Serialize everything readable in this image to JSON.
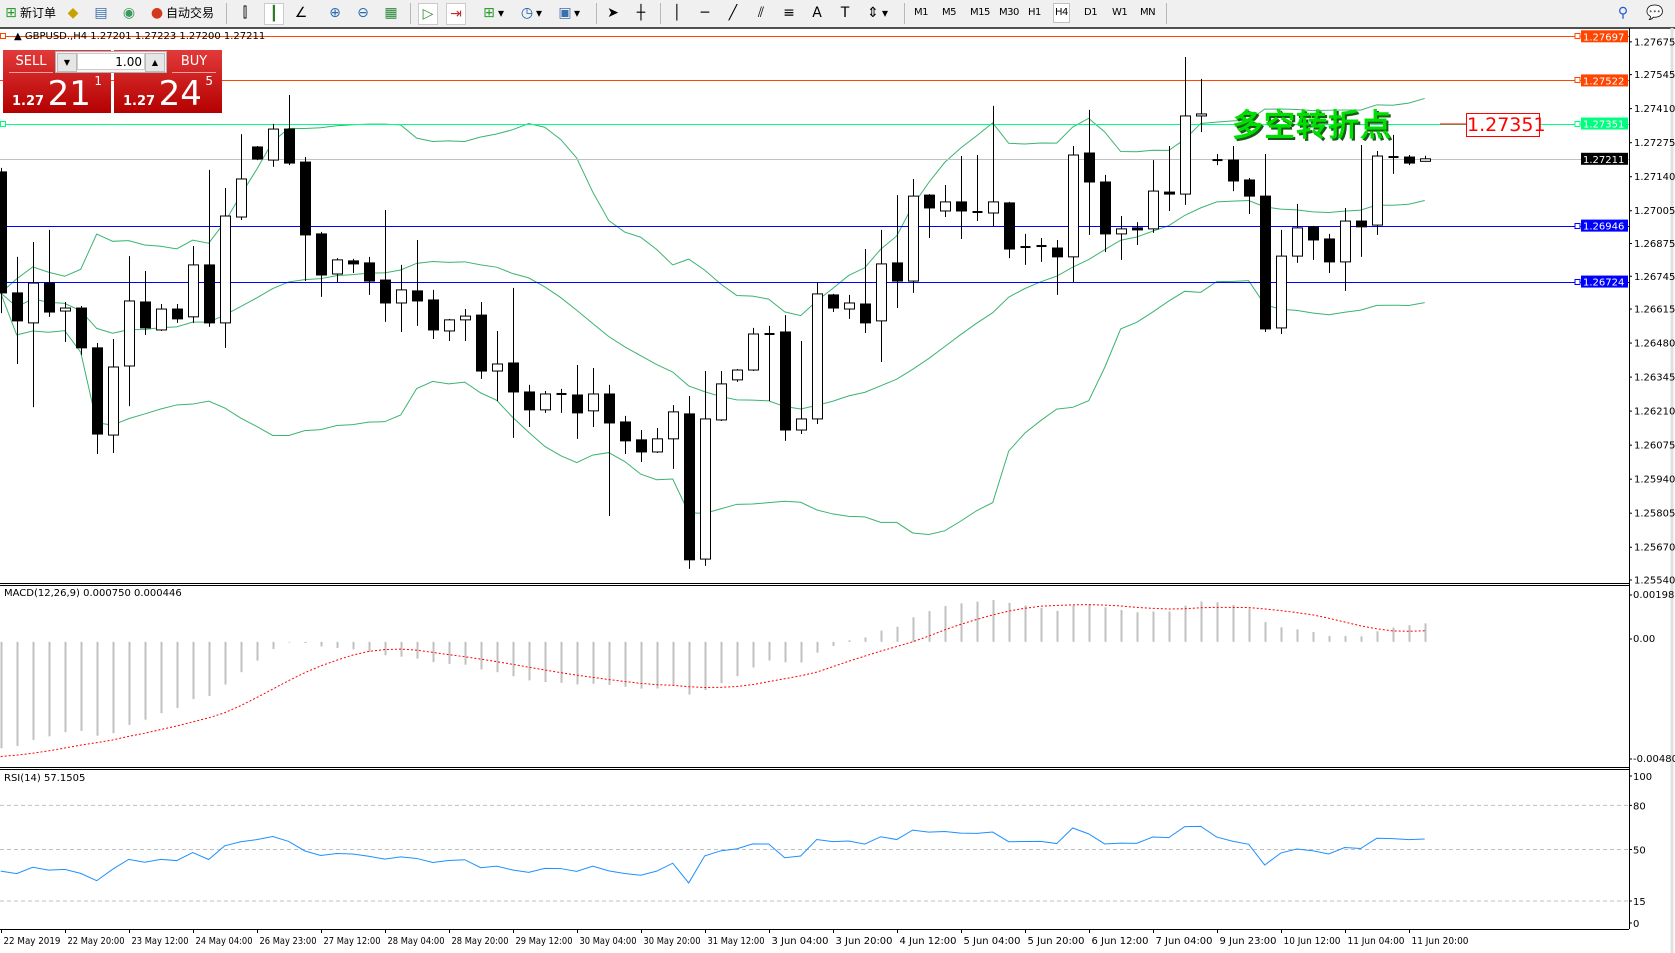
{
  "toolbar": {
    "new_order_label": "新订单",
    "auto_trading_label": "自动交易",
    "icons": [
      "new-order-icon",
      "market-watch-icon",
      "data-window-icon",
      "navigator-icon",
      "auto-trading-icon",
      "bar-chart-icon",
      "candlestick-icon",
      "line-chart-icon",
      "zoom-in-icon",
      "zoom-out-icon",
      "tile-windows-icon",
      "chart-shift-icon",
      "autoscroll-icon",
      "indicators-icon",
      "periods-icon",
      "templates-icon",
      "cursor-icon",
      "crosshair-icon",
      "vertical-line-icon",
      "horizontal-line-icon",
      "trendline-icon",
      "equidistant-channel-icon",
      "fibonacci-icon",
      "text-icon",
      "text-label-icon",
      "arrows-icon",
      "search-icon",
      "chat-icon"
    ],
    "timeframes": [
      "M1",
      "M5",
      "M15",
      "M30",
      "H1",
      "H4",
      "D1",
      "W1",
      "MN"
    ],
    "active_timeframe": "H4"
  },
  "chart": {
    "symbol_header": "GBPUSD.,H4  1.27201 1.27223 1.27200 1.27211",
    "annotation_text": "多空转折点",
    "annotation_price": "1.27351",
    "colors": {
      "up_body": "#ffffff",
      "down_body": "#000000",
      "bands": "#3cb371",
      "bid_line": "#c0c0c0",
      "resistance": "#ff4500",
      "pivot": "#00ff7f",
      "support": "#0000ff",
      "annotation": "#00e000"
    }
  },
  "one_click": {
    "sell_label": "SELL",
    "buy_label": "BUY",
    "lot": "1.00",
    "sell_price": {
      "prefix": "1.27",
      "big": "21",
      "small": "1"
    },
    "buy_price": {
      "prefix": "1.27",
      "big": "24",
      "small": "5"
    }
  },
  "price_axis": {
    "ticks": [
      "1.27675",
      "1.27545",
      "1.27410",
      "1.27275",
      "1.27140",
      "1.27005",
      "1.26875",
      "1.26745",
      "1.26615",
      "1.26480",
      "1.26345",
      "1.26210",
      "1.26075",
      "1.25940",
      "1.25805",
      "1.25670",
      "1.25540"
    ],
    "levels": [
      {
        "price": "1.27697",
        "color": "#ff4500",
        "text_color": "#ffffff"
      },
      {
        "price": "1.27522",
        "color": "#ff4500",
        "text_color": "#ffffff"
      },
      {
        "price": "1.27351",
        "color": "#00ff7f",
        "text_color": "#ffffff"
      },
      {
        "price": "1.27211",
        "color": "#000000",
        "text_color": "#ffffff",
        "line": "#c0c0c0"
      },
      {
        "price": "1.26946",
        "color": "#0000ff",
        "text_color": "#ffffff"
      },
      {
        "price": "1.26724",
        "color": "#0000ff",
        "text_color": "#ffffff"
      }
    ]
  },
  "macd": {
    "label": "MACD(12,26,9) 0.000750 0.000446",
    "axis": [
      "0.001985",
      "0.00",
      "-0.004803"
    ]
  },
  "rsi": {
    "label": "RSI(14) 57.1505",
    "axis": [
      "100",
      "80",
      "50",
      "15",
      "0"
    ],
    "levels": [
      80,
      50,
      15
    ]
  },
  "time_axis": [
    "22 May 2019",
    "22 May 20:00",
    "23 May 12:00",
    "24 May 04:00",
    "26 May 23:00",
    "27 May 12:00",
    "28 May 04:00",
    "28 May 20:00",
    "29 May 12:00",
    "30 May 04:00",
    "30 May 20:00",
    "31 May 12:00",
    "3 Jun 04:00",
    "3 Jun 20:00",
    "4 Jun 12:00",
    "5 Jun 04:00",
    "5 Jun 20:00",
    "6 Jun 12:00",
    "7 Jun 04:00",
    "9 Jun 23:00",
    "10 Jun 12:00",
    "11 Jun 04:00",
    "11 Jun 20:00"
  ],
  "chart_data": {
    "type": "candlestick",
    "symbol": "GBPUSD.",
    "timeframe": "H4",
    "ylim": [
      1.2554,
      1.27697
    ],
    "ohlc_fields": [
      "open",
      "high",
      "low",
      "close"
    ],
    "candles": [
      [
        1.27159,
        1.27175,
        1.26599,
        1.26679
      ],
      [
        1.26679,
        1.26822,
        1.26397,
        1.26568
      ],
      [
        1.2656,
        1.26881,
        1.26226,
        1.26718
      ],
      [
        1.26718,
        1.26929,
        1.26584,
        1.26603
      ],
      [
        1.26607,
        1.26643,
        1.26484,
        1.26619
      ],
      [
        1.26619,
        1.26627,
        1.26433,
        1.26461
      ],
      [
        1.26461,
        1.2648,
        1.2604,
        1.26119
      ],
      [
        1.26115,
        1.26496,
        1.26044,
        1.26385
      ],
      [
        1.26389,
        1.26825,
        1.2623,
        1.26647
      ],
      [
        1.26643,
        1.26766,
        1.26512,
        1.2654
      ],
      [
        1.26532,
        1.26635,
        1.26528,
        1.26615
      ],
      [
        1.26615,
        1.26635,
        1.2656,
        1.26576
      ],
      [
        1.26584,
        1.26865,
        1.2656,
        1.2679
      ],
      [
        1.2679,
        1.27167,
        1.26544,
        1.2656
      ],
      [
        1.2656,
        1.27095,
        1.26461,
        1.26984
      ],
      [
        1.2698,
        1.27309,
        1.26968,
        1.27131
      ],
      [
        1.27258,
        1.27262,
        1.27206,
        1.2721
      ],
      [
        1.27206,
        1.27349,
        1.27179,
        1.27329
      ],
      [
        1.27329,
        1.27464,
        1.27186,
        1.27194
      ],
      [
        1.27198,
        1.27218,
        1.26726,
        1.26909
      ],
      [
        1.26913,
        1.26921,
        1.26663,
        1.2675
      ],
      [
        1.26754,
        1.26817,
        1.26722,
        1.2681
      ],
      [
        1.26806,
        1.26814,
        1.26758,
        1.26794
      ],
      [
        1.26798,
        1.26822,
        1.26671,
        1.26726
      ],
      [
        1.2673,
        1.27008,
        1.26564,
        1.26639
      ],
      [
        1.26639,
        1.2679,
        1.26524,
        1.26691
      ],
      [
        1.26687,
        1.26889,
        1.26548,
        1.26647
      ],
      [
        1.26651,
        1.26691,
        1.26496,
        1.26532
      ],
      [
        1.26528,
        1.26576,
        1.26488,
        1.26572
      ],
      [
        1.26572,
        1.26615,
        1.26488,
        1.26587
      ],
      [
        1.26591,
        1.26643,
        1.26338,
        1.26369
      ],
      [
        1.26369,
        1.26528,
        1.2625,
        1.26397
      ],
      [
        1.26401,
        1.26699,
        1.26104,
        1.26286
      ],
      [
        1.26286,
        1.26314,
        1.26147,
        1.26215
      ],
      [
        1.26215,
        1.2629,
        1.26203,
        1.26278
      ],
      [
        1.26278,
        1.26298,
        1.26203,
        1.26274
      ],
      [
        1.26274,
        1.26393,
        1.261,
        1.26203
      ],
      [
        1.26211,
        1.26381,
        1.26147,
        1.26278
      ],
      [
        1.26278,
        1.26314,
        1.25794,
        1.26163
      ],
      [
        1.26167,
        1.26191,
        1.2604,
        1.26092
      ],
      [
        1.26096,
        1.26135,
        1.26008,
        1.26048
      ],
      [
        1.26048,
        1.26143,
        1.26044,
        1.261
      ],
      [
        1.261,
        1.26234,
        1.25981,
        1.26207
      ],
      [
        1.26199,
        1.2627,
        1.25584,
        1.2562
      ],
      [
        1.25623,
        1.26369,
        1.25596,
        1.26179
      ],
      [
        1.26175,
        1.26369,
        1.26171,
        1.26318
      ],
      [
        1.26334,
        1.26377,
        1.26326,
        1.26373
      ],
      [
        1.26373,
        1.2654,
        1.26369,
        1.26516
      ],
      [
        1.26516,
        1.26548,
        1.2625,
        1.26512
      ],
      [
        1.26524,
        1.26591,
        1.26092,
        1.26135
      ],
      [
        1.26135,
        1.26488,
        1.26119,
        1.26179
      ],
      [
        1.26179,
        1.26722,
        1.26159,
        1.26675
      ],
      [
        1.26671,
        1.26675,
        1.26603,
        1.26619
      ],
      [
        1.26615,
        1.26671,
        1.26576,
        1.26639
      ],
      [
        1.26635,
        1.26853,
        1.2652,
        1.2656
      ],
      [
        1.26568,
        1.26929,
        1.26405,
        1.26794
      ],
      [
        1.26798,
        1.27067,
        1.26619,
        1.26726
      ],
      [
        1.26726,
        1.27131,
        1.26679,
        1.27063
      ],
      [
        1.27067,
        1.27071,
        1.26897,
        1.27016
      ],
      [
        1.27004,
        1.27107,
        1.2698,
        1.2704
      ],
      [
        1.2704,
        1.27222,
        1.26893,
        1.27004
      ],
      [
        1.26996,
        1.27226,
        1.26964,
        1.27
      ],
      [
        1.26996,
        1.27421,
        1.26944,
        1.2704
      ],
      [
        1.27036,
        1.2704,
        1.26817,
        1.26853
      ],
      [
        1.26861,
        1.26913,
        1.2679,
        1.26857
      ],
      [
        1.26865,
        1.26897,
        1.26802,
        1.26861
      ],
      [
        1.26857,
        1.26889,
        1.26671,
        1.26822
      ],
      [
        1.26822,
        1.27262,
        1.26722,
        1.27226
      ],
      [
        1.27234,
        1.27405,
        1.26909,
        1.27119
      ],
      [
        1.27119,
        1.27147,
        1.26841,
        1.26913
      ],
      [
        1.26913,
        1.26984,
        1.2681,
        1.26933
      ],
      [
        1.26937,
        1.2696,
        1.26869,
        1.26929
      ],
      [
        1.26933,
        1.27206,
        1.26917,
        1.27083
      ],
      [
        1.27079,
        1.27262,
        1.27004,
        1.27071
      ],
      [
        1.27071,
        1.27615,
        1.27028,
        1.27381
      ],
      [
        1.27381,
        1.27528,
        1.27317,
        1.27389
      ],
      [
        1.27206,
        1.2723,
        1.27186,
        1.27202
      ],
      [
        1.27206,
        1.27262,
        1.27083,
        1.27123
      ],
      [
        1.27127,
        1.27135,
        1.26992,
        1.27063
      ],
      [
        1.27063,
        1.2723,
        1.26524,
        1.26536
      ],
      [
        1.2654,
        1.26929,
        1.26516,
        1.26825
      ],
      [
        1.26825,
        1.27032,
        1.26798,
        1.26937
      ],
      [
        1.26941,
        1.26945,
        1.2681,
        1.26889
      ],
      [
        1.26893,
        1.26913,
        1.26758,
        1.26802
      ],
      [
        1.26802,
        1.27016,
        1.26687,
        1.26964
      ],
      [
        1.26964,
        1.27266,
        1.26822,
        1.26941
      ],
      [
        1.26948,
        1.27242,
        1.26909,
        1.27222
      ],
      [
        1.27218,
        1.27306,
        1.27151,
        1.27214
      ],
      [
        1.27218,
        1.27226,
        1.27186,
        1.27194
      ],
      [
        1.27201,
        1.27223,
        1.272,
        1.27211
      ]
    ],
    "indicators": [
      "Bollinger Bands",
      "MACD(12,26,9)",
      "RSI(14)"
    ]
  }
}
